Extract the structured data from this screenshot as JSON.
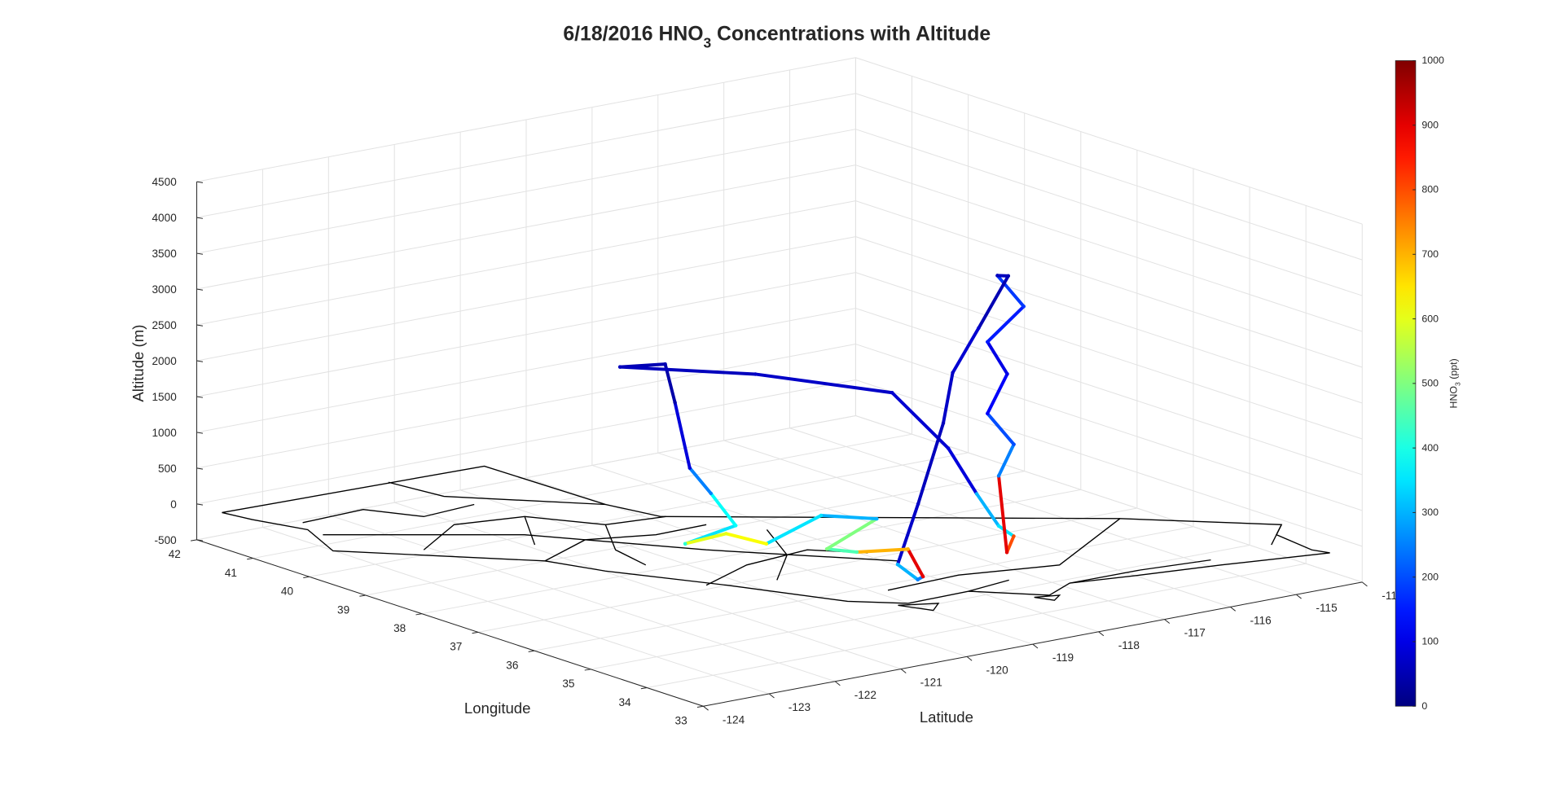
{
  "chart_data": {
    "type": "line3d",
    "title": [
      "6/18/2016 HNO",
      "3",
      " Concentrations with Altitude"
    ],
    "xlabel": "Latitude",
    "ylabel": "Longitude",
    "zlabel": "Altitude (m)",
    "colorbar_label": [
      "HNO",
      "3",
      " (ppt)"
    ],
    "xlim": [
      -124,
      -114
    ],
    "xticks": [
      -124,
      -123,
      -122,
      -121,
      -120,
      -119,
      -118,
      -117,
      -116,
      -115,
      -114
    ],
    "ylim": [
      33,
      42
    ],
    "yticks": [
      33,
      34,
      35,
      36,
      37,
      38,
      39,
      40,
      41,
      42
    ],
    "zlim": [
      -500,
      4500
    ],
    "zticks": [
      -500,
      0,
      500,
      1000,
      1500,
      2000,
      2500,
      3000,
      3500,
      4000,
      4500
    ],
    "clim": [
      0,
      1000
    ],
    "cticks": [
      0,
      100,
      200,
      300,
      400,
      500,
      600,
      700,
      800,
      900,
      1000
    ],
    "colormap": "jet",
    "grid": true,
    "x": [
      -120.67,
      -119.75,
      -119.99,
      -120.08,
      -119.98,
      -120.0,
      -120.31,
      -119.11,
      -118.23,
      -118.06,
      -117.86,
      -117.33,
      -117.17,
      -117.71,
      -117.33,
      -117.1,
      -117.5,
      -117.2,
      -117.5,
      -116.95,
      -117.35,
      -117.15,
      -117.6,
      -117.9,
      -118.0,
      -118.51,
      -119.12,
      -119.37,
      -119.23,
      -118.57,
      -119.15,
      -119.35,
      -118.19,
      -118.42,
      -119.78,
      -119.87,
      -120.56
    ],
    "y": [
      37.22,
      37.4,
      37.56,
      37.83,
      38.21,
      38.36,
      38.8,
      37.8,
      36.4,
      35.6,
      35.33,
      35.56,
      35.48,
      34.97,
      35.56,
      35.56,
      35.56,
      35.56,
      35.56,
      35.56,
      35.56,
      35.6,
      35.6,
      35.71,
      35.76,
      35.61,
      35.26,
      34.61,
      34.68,
      35.72,
      35.95,
      36.25,
      36.72,
      37.44,
      36.82,
      37.43,
      37.35
    ],
    "z": [
      100,
      150,
      600,
      900,
      1700,
      2200,
      2100,
      2050,
      2000,
      1400,
      800,
      200,
      50,
      50,
      900,
      1300,
      1800,
      2300,
      2800,
      3200,
      3700,
      3650,
      3000,
      2400,
      1700,
      700,
      50,
      50,
      50,
      50,
      50,
      50,
      150,
      50,
      50,
      50,
      50
    ],
    "hno3": [
      350,
      380,
      250,
      90,
      40,
      50,
      60,
      70,
      80,
      90,
      300,
      350,
      800,
      900,
      250,
      200,
      120,
      100,
      150,
      180,
      60,
      50,
      80,
      70,
      60,
      70,
      300,
      250,
      900,
      700,
      450,
      500,
      300,
      350,
      620,
      600,
      420
    ]
  }
}
